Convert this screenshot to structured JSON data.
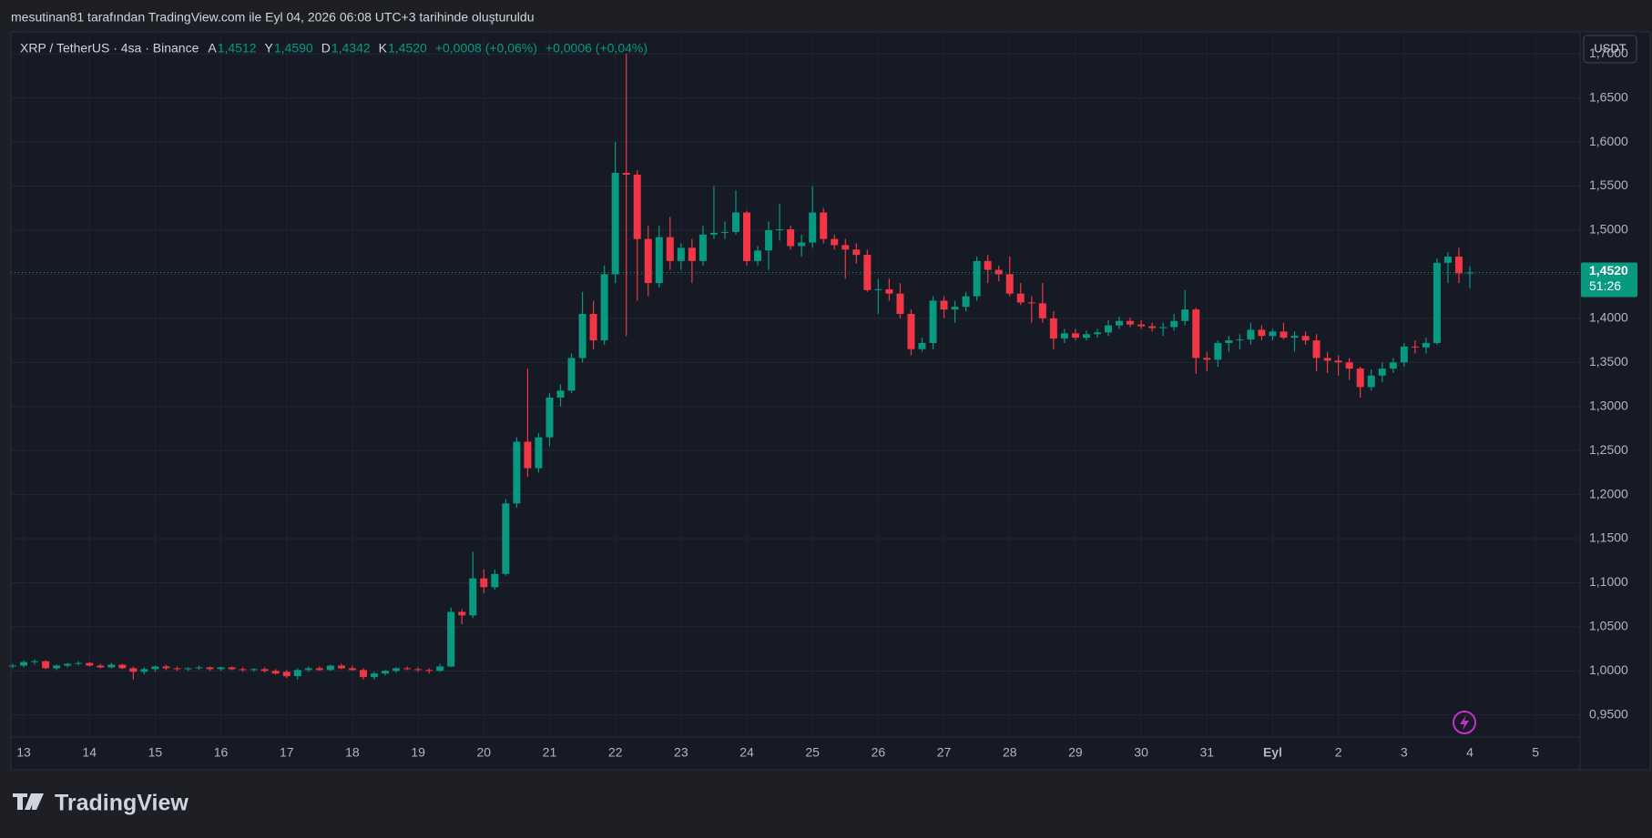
{
  "chart_data": {
    "type": "candlestick",
    "credit": "mesutinan81 tarafından TradingView.com ile Eyl 04, 2026 06:08 UTC+3 tarihinde oluşturuldu",
    "symbol": "XRP / TetherUS · 4sa · Binance",
    "ohlc_fields": [
      {
        "key": "A",
        "value": "1,4512"
      },
      {
        "key": "Y",
        "value": "1,4590"
      },
      {
        "key": "D",
        "value": "1,4342"
      },
      {
        "key": "K",
        "value": "1,4520"
      }
    ],
    "change": "+0,0008 (+0,06%)",
    "change2": "+0,0006 (+0,04%)",
    "currency": "USDT",
    "last_price": {
      "value": 1.452,
      "label": "1,4520"
    },
    "countdown": "51:26",
    "logo": "TradingView",
    "up_color": "#089981",
    "down_color": "#f23645",
    "ylim": [
      0.925,
      1.725
    ],
    "yticks": [
      {
        "value": 0.95,
        "label": "0,9500"
      },
      {
        "value": 1.0,
        "label": "1,0000"
      },
      {
        "value": 1.05,
        "label": "1,0500"
      },
      {
        "value": 1.1,
        "label": "1,1000"
      },
      {
        "value": 1.15,
        "label": "1,1500"
      },
      {
        "value": 1.2,
        "label": "1,2000"
      },
      {
        "value": 1.25,
        "label": "1,2500"
      },
      {
        "value": 1.3,
        "label": "1,3000"
      },
      {
        "value": 1.35,
        "label": "1,3500"
      },
      {
        "value": 1.4,
        "label": "1,4000"
      },
      {
        "value": 1.45,
        "label": "1,4500"
      },
      {
        "value": 1.5,
        "label": "1,5000"
      },
      {
        "value": 1.55,
        "label": "1,5500"
      },
      {
        "value": 1.6,
        "label": "1,6000"
      },
      {
        "value": 1.65,
        "label": "1,6500"
      },
      {
        "value": 1.7,
        "label": "1,7000"
      }
    ],
    "day_labels": [
      "13",
      "14",
      "15",
      "16",
      "17",
      "18",
      "19",
      "20",
      "21",
      "22",
      "23",
      "24",
      "25",
      "26",
      "27",
      "28",
      "29",
      "30",
      "31",
      "Eyl",
      "2",
      "3",
      "4",
      "5"
    ],
    "grid": true,
    "candles": [
      [
        1.005,
        1.008,
        1.003,
        1.006
      ],
      [
        1.006,
        1.012,
        1.004,
        1.01
      ],
      [
        1.01,
        1.013,
        1.007,
        1.011
      ],
      [
        1.011,
        1.012,
        1.002,
        1.003
      ],
      [
        1.003,
        1.007,
        1.001,
        1.006
      ],
      [
        1.006,
        1.009,
        1.004,
        1.008
      ],
      [
        1.008,
        1.011,
        1.006,
        1.009
      ],
      [
        1.009,
        1.01,
        1.005,
        1.006
      ],
      [
        1.006,
        1.008,
        1.003,
        1.004
      ],
      [
        1.004,
        1.009,
        1.003,
        1.007
      ],
      [
        1.007,
        1.008,
        1.002,
        1.003
      ],
      [
        1.003,
        1.005,
        0.99,
        0.999
      ],
      [
        0.999,
        1.004,
        0.996,
        1.002
      ],
      [
        1.002,
        1.006,
        0.999,
        1.005
      ],
      [
        1.005,
        1.007,
        1.001,
        1.003
      ],
      [
        1.003,
        1.005,
        1.0,
        1.002
      ],
      [
        1.002,
        1.004,
        1.0,
        1.003
      ],
      [
        1.003,
        1.006,
        1.001,
        1.004
      ],
      [
        1.004,
        1.005,
        1.0,
        1.002
      ],
      [
        1.002,
        1.005,
        1.0,
        1.004
      ],
      [
        1.004,
        1.005,
        1.001,
        1.002
      ],
      [
        1.002,
        1.004,
        0.999,
        1.001
      ],
      [
        1.001,
        1.003,
        0.999,
        1.002
      ],
      [
        1.002,
        1.004,
        0.998,
        1.0
      ],
      [
        1.0,
        1.002,
        0.996,
        0.997
      ],
      [
        0.999,
        1.001,
        0.992,
        0.994
      ],
      [
        0.994,
        1.003,
        0.99,
        1.001
      ],
      [
        1.001,
        1.005,
        0.999,
        1.003
      ],
      [
        1.003,
        1.005,
        1.0,
        1.001
      ],
      [
        1.001,
        1.007,
        1.0,
        1.006
      ],
      [
        1.006,
        1.008,
        1.002,
        1.003
      ],
      [
        1.003,
        1.006,
        1.0,
        1.001
      ],
      [
        1.001,
        1.003,
        0.99,
        0.993
      ],
      [
        0.993,
        0.999,
        0.99,
        0.997
      ],
      [
        0.997,
        1.001,
        0.995,
        1.0
      ],
      [
        1.0,
        1.004,
        0.998,
        1.003
      ],
      [
        1.003,
        1.005,
        1.001,
        1.002
      ],
      [
        1.002,
        1.004,
        0.999,
        1.001
      ],
      [
        1.001,
        1.003,
        0.997,
        1.0
      ],
      [
        1.0,
        1.008,
        0.999,
        1.005
      ],
      [
        1.005,
        1.072,
        1.004,
        1.067
      ],
      [
        1.067,
        1.07,
        1.053,
        1.063
      ],
      [
        1.063,
        1.135,
        1.06,
        1.105
      ],
      [
        1.105,
        1.115,
        1.088,
        1.095
      ],
      [
        1.095,
        1.115,
        1.092,
        1.11
      ],
      [
        1.11,
        1.195,
        1.108,
        1.19
      ],
      [
        1.19,
        1.265,
        1.185,
        1.26
      ],
      [
        1.26,
        1.343,
        1.22,
        1.23
      ],
      [
        1.23,
        1.27,
        1.225,
        1.265
      ],
      [
        1.265,
        1.315,
        1.255,
        1.31
      ],
      [
        1.31,
        1.325,
        1.3,
        1.318
      ],
      [
        1.318,
        1.36,
        1.315,
        1.355
      ],
      [
        1.355,
        1.43,
        1.35,
        1.405
      ],
      [
        1.405,
        1.42,
        1.365,
        1.375
      ],
      [
        1.375,
        1.46,
        1.37,
        1.45
      ],
      [
        1.45,
        1.6,
        1.44,
        1.565
      ],
      [
        1.565,
        1.7,
        1.38,
        1.563
      ],
      [
        1.563,
        1.568,
        1.42,
        1.49
      ],
      [
        1.49,
        1.505,
        1.425,
        1.44
      ],
      [
        1.44,
        1.505,
        1.435,
        1.492
      ],
      [
        1.492,
        1.515,
        1.455,
        1.465
      ],
      [
        1.465,
        1.485,
        1.455,
        1.48
      ],
      [
        1.48,
        1.49,
        1.44,
        1.465
      ],
      [
        1.465,
        1.505,
        1.46,
        1.495
      ],
      [
        1.495,
        1.55,
        1.49,
        1.497
      ],
      [
        1.497,
        1.51,
        1.49,
        1.498
      ],
      [
        1.498,
        1.545,
        1.495,
        1.52
      ],
      [
        1.52,
        1.522,
        1.46,
        1.465
      ],
      [
        1.465,
        1.482,
        1.46,
        1.477
      ],
      [
        1.477,
        1.51,
        1.455,
        1.5
      ],
      [
        1.5,
        1.53,
        1.488,
        1.501
      ],
      [
        1.501,
        1.505,
        1.478,
        1.482
      ],
      [
        1.482,
        1.495,
        1.47,
        1.486
      ],
      [
        1.486,
        1.55,
        1.48,
        1.52
      ],
      [
        1.52,
        1.525,
        1.485,
        1.49
      ],
      [
        1.49,
        1.495,
        1.478,
        1.483
      ],
      [
        1.483,
        1.49,
        1.445,
        1.478
      ],
      [
        1.478,
        1.485,
        1.462,
        1.472
      ],
      [
        1.472,
        1.478,
        1.43,
        1.432
      ],
      [
        1.432,
        1.445,
        1.405,
        1.433
      ],
      [
        1.433,
        1.445,
        1.42,
        1.428
      ],
      [
        1.428,
        1.44,
        1.4,
        1.405
      ],
      [
        1.405,
        1.41,
        1.358,
        1.365
      ],
      [
        1.365,
        1.378,
        1.362,
        1.372
      ],
      [
        1.372,
        1.425,
        1.365,
        1.42
      ],
      [
        1.42,
        1.425,
        1.4,
        1.41
      ],
      [
        1.41,
        1.42,
        1.395,
        1.413
      ],
      [
        1.413,
        1.43,
        1.408,
        1.425
      ],
      [
        1.425,
        1.47,
        1.42,
        1.465
      ],
      [
        1.465,
        1.472,
        1.44,
        1.455
      ],
      [
        1.455,
        1.46,
        1.442,
        1.45
      ],
      [
        1.45,
        1.47,
        1.425,
        1.428
      ],
      [
        1.428,
        1.44,
        1.415,
        1.418
      ],
      [
        1.418,
        1.425,
        1.395,
        1.417
      ],
      [
        1.417,
        1.44,
        1.395,
        1.4
      ],
      [
        1.4,
        1.408,
        1.365,
        1.377
      ],
      [
        1.377,
        1.388,
        1.372,
        1.383
      ],
      [
        1.383,
        1.388,
        1.375,
        1.378
      ],
      [
        1.378,
        1.386,
        1.375,
        1.382
      ],
      [
        1.382,
        1.388,
        1.378,
        1.384
      ],
      [
        1.384,
        1.398,
        1.38,
        1.392
      ],
      [
        1.392,
        1.402,
        1.388,
        1.397
      ],
      [
        1.397,
        1.401,
        1.39,
        1.393
      ],
      [
        1.393,
        1.398,
        1.388,
        1.391
      ],
      [
        1.391,
        1.395,
        1.385,
        1.389
      ],
      [
        1.389,
        1.395,
        1.38,
        1.39
      ],
      [
        1.39,
        1.405,
        1.386,
        1.397
      ],
      [
        1.397,
        1.432,
        1.392,
        1.41
      ],
      [
        1.41,
        1.412,
        1.337,
        1.355
      ],
      [
        1.355,
        1.362,
        1.34,
        1.353
      ],
      [
        1.353,
        1.375,
        1.345,
        1.372
      ],
      [
        1.372,
        1.38,
        1.362,
        1.375
      ],
      [
        1.375,
        1.382,
        1.365,
        1.376
      ],
      [
        1.376,
        1.395,
        1.37,
        1.387
      ],
      [
        1.387,
        1.392,
        1.375,
        1.38
      ],
      [
        1.38,
        1.388,
        1.375,
        1.385
      ],
      [
        1.385,
        1.395,
        1.376,
        1.378
      ],
      [
        1.378,
        1.385,
        1.362,
        1.38
      ],
      [
        1.38,
        1.385,
        1.37,
        1.375
      ],
      [
        1.375,
        1.382,
        1.34,
        1.355
      ],
      [
        1.355,
        1.362,
        1.338,
        1.352
      ],
      [
        1.352,
        1.358,
        1.335,
        1.35
      ],
      [
        1.35,
        1.355,
        1.33,
        1.343
      ],
      [
        1.343,
        1.345,
        1.31,
        1.322
      ],
      [
        1.322,
        1.342,
        1.318,
        1.335
      ],
      [
        1.335,
        1.35,
        1.328,
        1.343
      ],
      [
        1.343,
        1.355,
        1.338,
        1.35
      ],
      [
        1.35,
        1.372,
        1.345,
        1.368
      ],
      [
        1.368,
        1.375,
        1.36,
        1.367
      ],
      [
        1.367,
        1.378,
        1.36,
        1.372
      ],
      [
        1.372,
        1.468,
        1.37,
        1.463
      ],
      [
        1.463,
        1.475,
        1.44,
        1.47
      ],
      [
        1.47,
        1.48,
        1.44,
        1.451
      ],
      [
        1.4512,
        1.459,
        1.4342,
        1.452
      ]
    ]
  }
}
